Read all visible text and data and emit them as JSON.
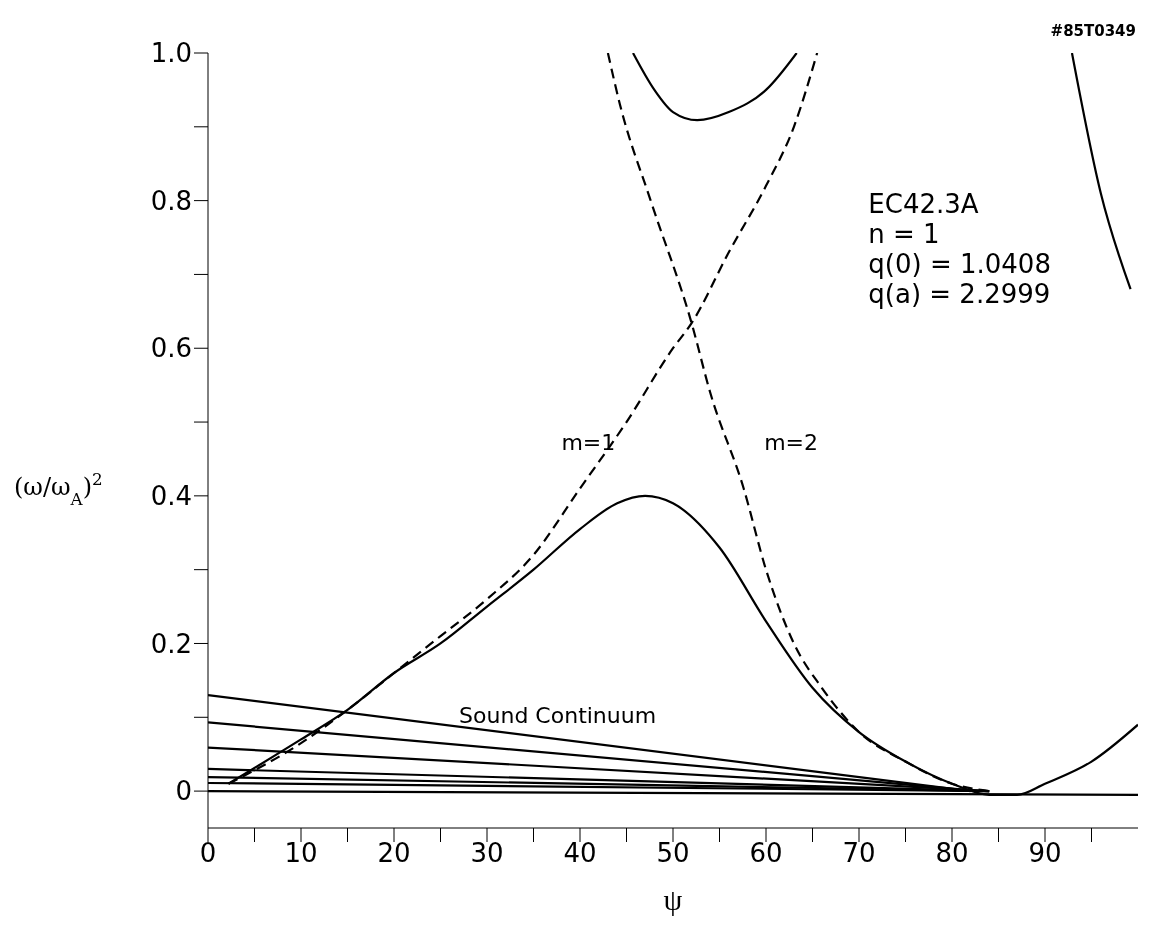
{
  "chart_data": {
    "type": "line",
    "xlabel": "ψ",
    "ylabel": "(ω/ω$_{A}$)$^{2}$",
    "xlim": [
      0,
      100
    ],
    "ylim": [
      -0.05,
      1.0
    ],
    "xticks": [
      0,
      {
        "value": 5,
        "label": null
      },
      10,
      {
        "value": 15,
        "label": null
      },
      20,
      {
        "value": 25,
        "label": null
      },
      30,
      {
        "value": 35,
        "label": null
      },
      40,
      {
        "value": 45,
        "label": null
      },
      50,
      {
        "value": 55,
        "label": null
      },
      60,
      {
        "value": 65,
        "label": null
      },
      70,
      {
        "value": 75,
        "label": null
      },
      80,
      {
        "value": 85,
        "label": null
      },
      90,
      {
        "value": 95,
        "label": null
      }
    ],
    "yticks": [
      0,
      {
        "value": 0.1,
        "label": null
      },
      0.2,
      {
        "value": 0.3,
        "label": null
      },
      0.4,
      {
        "value": 0.5,
        "label": null
      },
      0.6,
      {
        "value": 0.7,
        "label": null
      },
      0.8,
      {
        "value": 0.9,
        "label": null
      },
      {
        "value": 1,
        "label": "1.0"
      }
    ],
    "marker": "none",
    "series": [
      {
        "color": "#000000",
        "line_style": "solid",
        "x": [
          2.2,
          10,
          15,
          20,
          25,
          30,
          35,
          40,
          44,
          47,
          50,
          55,
          60,
          65,
          70,
          75,
          80,
          84,
          87,
          90,
          95,
          100
        ],
        "values": [
          0.01,
          0.07,
          0.11,
          0.16,
          0.2,
          0.25,
          0.3,
          0.355,
          0.39,
          0.4,
          0.39,
          0.33,
          0.23,
          0.14,
          0.08,
          0.04,
          0.01,
          -0.005,
          -0.005,
          0.01,
          0.04,
          0.09
        ]
      },
      {
        "color": "#000000",
        "line_style": "dashed",
        "x": [
          2.2,
          10,
          15,
          20,
          25,
          30,
          35,
          40,
          45,
          50,
          52,
          56,
          60,
          63,
          65.5
        ],
        "values": [
          0.01,
          0.065,
          0.11,
          0.16,
          0.21,
          0.26,
          0.32,
          0.41,
          0.5,
          0.6,
          0.634,
          0.73,
          0.82,
          0.9,
          1.0
        ]
      },
      {
        "color": "#000000",
        "line_style": "dashed",
        "x": [
          43,
          44.3,
          47.6,
          52,
          54,
          57.6,
          60,
          63,
          66,
          70,
          75,
          80,
          84
        ],
        "values": [
          1.0,
          0.93,
          0.8,
          0.634,
          0.54,
          0.41,
          0.3,
          0.2,
          0.14,
          0.08,
          0.04,
          0.01,
          0
        ]
      },
      {
        "color": "#000000",
        "line_style": "solid",
        "x": [
          45.7,
          48,
          50,
          52.6,
          56,
          60,
          63.3
        ],
        "values": [
          1.0,
          0.95,
          0.92,
          0.909,
          0.92,
          0.95,
          1.0
        ]
      },
      {
        "color": "#000000",
        "line_style": "solid",
        "x": [
          92.9,
          96,
          99.2
        ],
        "values": [
          1.0,
          0.81,
          0.68
        ]
      },
      {
        "color": "#000000",
        "line_style": "solid",
        "x": [
          0,
          82
        ],
        "values": [
          0.13,
          0
        ]
      },
      {
        "color": "#000000",
        "line_style": "solid",
        "x": [
          0,
          83
        ],
        "values": [
          0.093,
          0
        ]
      },
      {
        "color": "#000000",
        "line_style": "solid",
        "x": [
          0,
          84
        ],
        "values": [
          0.059,
          0
        ]
      },
      {
        "color": "#000000",
        "line_style": "solid",
        "x": [
          0,
          84
        ],
        "values": [
          0.03,
          0
        ]
      },
      {
        "color": "#000000",
        "line_style": "solid",
        "x": [
          0,
          84
        ],
        "values": [
          0.019,
          0
        ]
      },
      {
        "color": "#000000",
        "line_style": "solid",
        "x": [
          0,
          84
        ],
        "values": [
          0.011,
          0
        ]
      },
      {
        "color": "#000000",
        "line_style": "solid",
        "x": [
          0,
          100
        ],
        "values": [
          0,
          -0.005
        ]
      }
    ],
    "annotations": [
      "#85T0349",
      "EC42.3A",
      "n = 1",
      "q(0) = 1.0408",
      "q(a) = 2.2999",
      "m=1",
      "m=2",
      "Sound Continuum"
    ]
  }
}
